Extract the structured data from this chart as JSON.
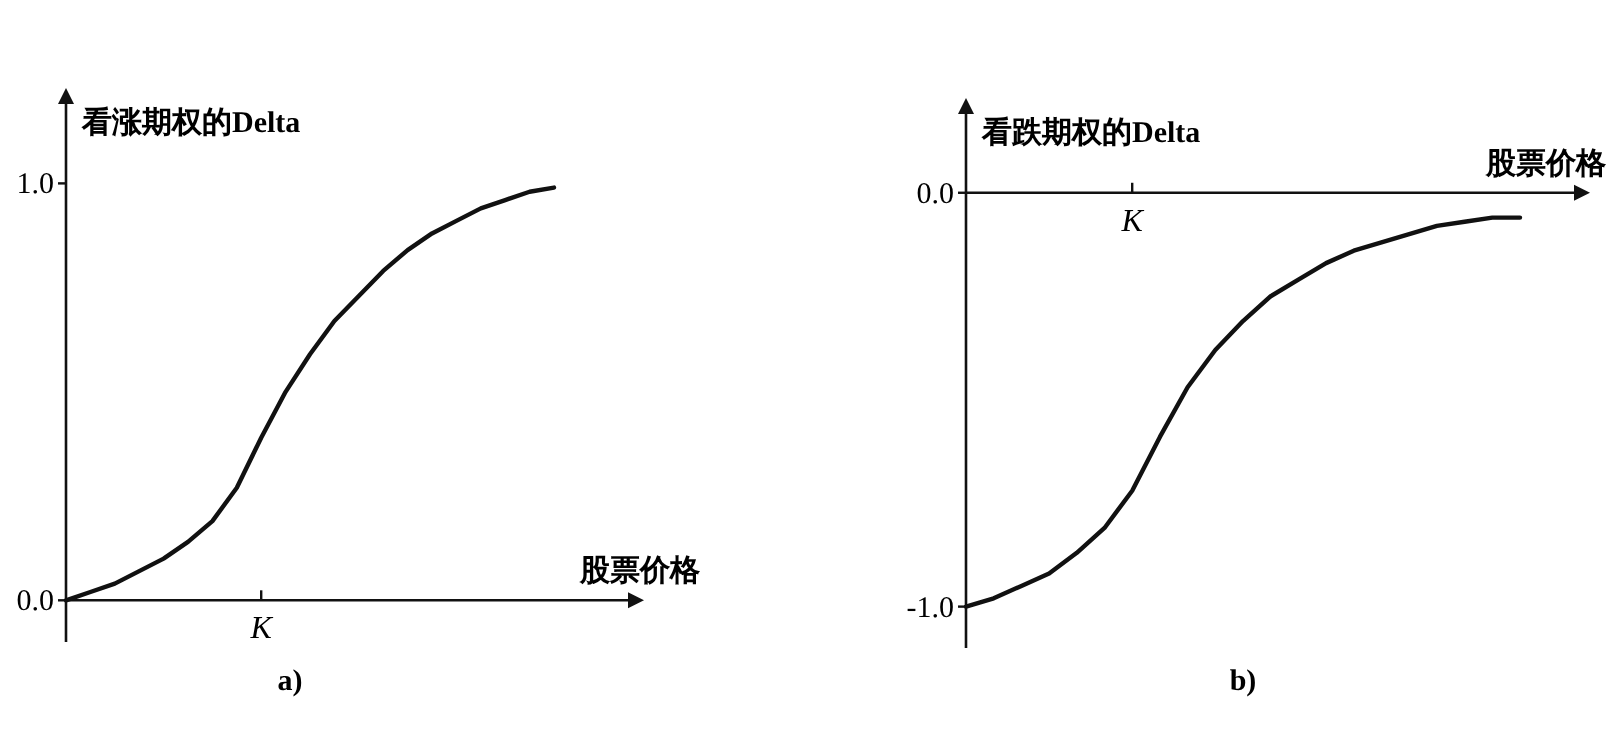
{
  "chart_data": [
    {
      "type": "line",
      "ylabel": "看涨期权的Delta",
      "xlabel": "股票价格",
      "annotations": [
        "a)"
      ],
      "categories": [
        null,
        null,
        null,
        null,
        null,
        null,
        null,
        null,
        "K",
        null,
        null,
        null,
        null,
        null,
        null,
        null,
        null,
        null,
        null,
        null,
        null
      ],
      "values": [
        0.0,
        0.02,
        0.04,
        0.07,
        0.1,
        0.14,
        0.19,
        0.27,
        0.39,
        0.5,
        0.59,
        0.67,
        0.73,
        0.79,
        0.84,
        0.88,
        0.91,
        0.94,
        0.96,
        0.98,
        0.99
      ],
      "color": "#111111",
      "ylim": [
        -0.1,
        1.2
      ],
      "yticks": [
        {
          "value": 0,
          "label": "0.0"
        },
        {
          "value": 1,
          "label": "1.0"
        }
      ],
      "marker": "none",
      "line_style": "solid"
    },
    {
      "type": "line",
      "ylabel": "看跌期权的Delta",
      "xlabel": "股票价格",
      "annotations": [
        "b)"
      ],
      "categories": [
        null,
        null,
        null,
        null,
        null,
        null,
        "K",
        null,
        null,
        null,
        null,
        null,
        null,
        null,
        null,
        null,
        null,
        null,
        null,
        null,
        null
      ],
      "values": [
        -1.0,
        -0.98,
        -0.95,
        -0.92,
        -0.87,
        -0.81,
        -0.72,
        -0.59,
        -0.47,
        -0.38,
        -0.31,
        -0.25,
        -0.21,
        -0.17,
        -0.14,
        -0.12,
        -0.1,
        -0.08,
        -0.07,
        -0.06,
        -0.06
      ],
      "color": "#111111",
      "ylim": [
        -1.1,
        0.2
      ],
      "yticks": [
        {
          "value": 0,
          "label": "0.0"
        },
        {
          "value": -1,
          "label": "-1.0"
        }
      ],
      "marker": "none",
      "line_style": "solid"
    }
  ]
}
